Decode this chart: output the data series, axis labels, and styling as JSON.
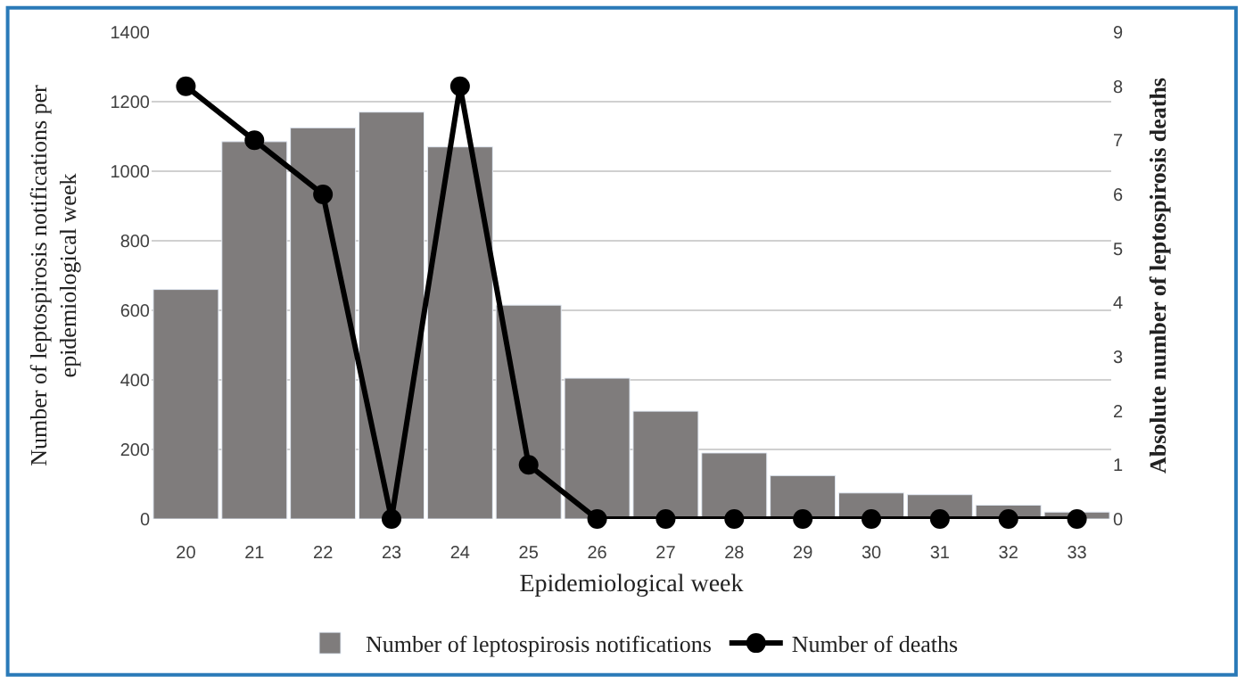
{
  "chart_data": {
    "type": "bar",
    "xlabel": "Epidemiological week",
    "ylabel": "Number of leptospirosis notifications per epidemiological week",
    "y2label": "Absolute number of leptospirosis deaths",
    "categories": [
      "20",
      "21",
      "22",
      "23",
      "24",
      "25",
      "26",
      "27",
      "28",
      "29",
      "30",
      "31",
      "32",
      "33"
    ],
    "series": [
      {
        "name": "Number of leptospirosis notifications",
        "color": "#7f7c7c",
        "values": [
          660,
          1085,
          1125,
          1170,
          1070,
          615,
          405,
          310,
          190,
          125,
          75,
          70,
          40,
          20
        ]
      },
      {
        "name": "Number of deaths",
        "type": "line",
        "axis": "y2",
        "color": "#000000",
        "marker": "circle",
        "line_style": "solid",
        "values": [
          8,
          7,
          6,
          0,
          8,
          1,
          0,
          0,
          0,
          0,
          0,
          0,
          0,
          0
        ]
      }
    ],
    "ylim": [
      0,
      1400
    ],
    "yticks": [
      0,
      200,
      400,
      600,
      800,
      1000,
      1200,
      1400
    ],
    "y2lim": [
      0,
      9
    ],
    "y2ticks": [
      0,
      1,
      2,
      3,
      4,
      5,
      6,
      7,
      8,
      9
    ],
    "grid": "y",
    "legend": "bottom"
  }
}
